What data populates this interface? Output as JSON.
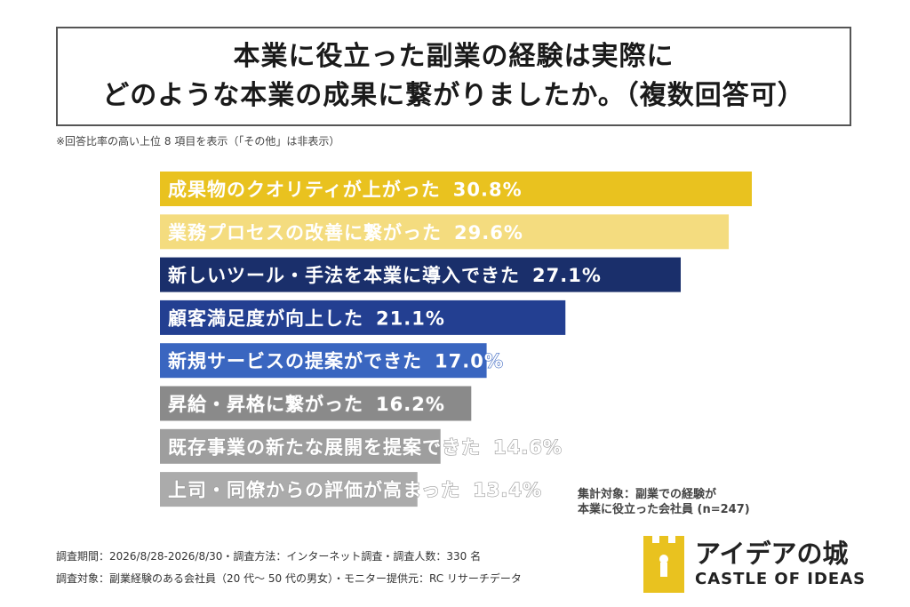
{
  "title": {
    "line1": "本業に役立った副業の経験は実際に",
    "line2": "どのような本業の成果に繋がりましたか。（複数回答可）"
  },
  "note": "※回答比率の高い上位 8 項目を表示（「その他」は非表示）",
  "chart_data": {
    "type": "bar",
    "orientation": "horizontal",
    "unit": "%",
    "categories": [
      "成果物のクオリティが上がった",
      "業務プロセスの改善に繋がった",
      "新しいツール・手法を本業に導入できた",
      "顧客満足度が向上した",
      "新規サービスの提案ができた",
      "昇給・昇格に繋がった",
      "既存事業の新たな展開を提案できた",
      "上司・同僚からの評価が高まった"
    ],
    "values": [
      30.8,
      29.6,
      27.1,
      21.1,
      17.0,
      16.2,
      14.6,
      13.4
    ],
    "value_labels": [
      "30.8%",
      "29.6%",
      "27.1%",
      "21.1%",
      "17.0%",
      "16.2%",
      "14.6%",
      "13.4%"
    ],
    "colors": [
      "#e9c21f",
      "#f4dc7f",
      "#1a2f6b",
      "#233f91",
      "#3a66c0",
      "#8a8a8a",
      "#9e9e9e",
      "#ababab"
    ],
    "xlim": [
      0,
      30.8
    ]
  },
  "sample_note": {
    "line1": "集計対象：副業での経験が",
    "line2": "本業に役立った会社員 (n=247)"
  },
  "footer": {
    "line1": "調査期間：2026/8/28-2026/8/30・調査方法：インターネット調査・調査人数：330 名",
    "line2": "調査対象：副業経験のある会社員（20 代〜 50 代の男女）・モニター提供元：RC リサーチデータ"
  },
  "logo": {
    "jp": "アイデアの城",
    "en": "CASTLE OF IDEAS",
    "icon": "castle-icon",
    "color": "#e9c21f"
  }
}
